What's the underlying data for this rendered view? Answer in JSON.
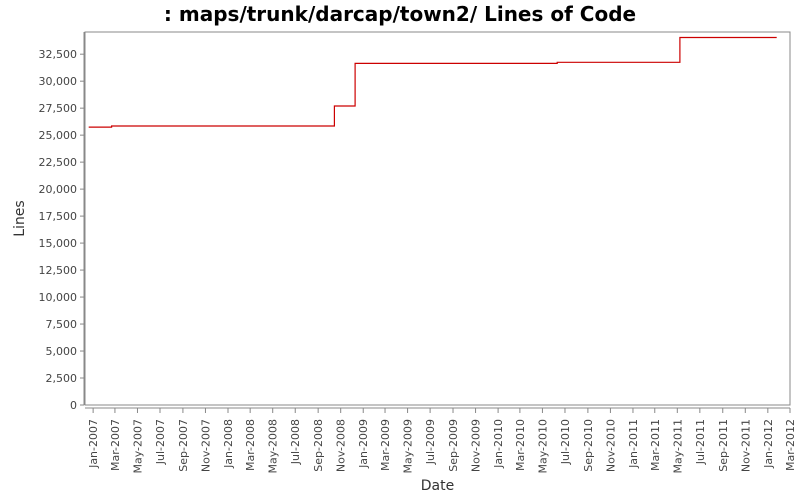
{
  "chart_data": {
    "type": "line",
    "title": ": maps/trunk/darcap/town2/ Lines of Code",
    "xlabel": "Date",
    "ylabel": "Lines",
    "ylim": [
      0,
      34000
    ],
    "xlim": [
      "2006-12-10",
      "2012-03-01"
    ],
    "grid": false,
    "step": true,
    "line_color": "#cc0000",
    "y_ticks": [
      0,
      2500,
      5000,
      7500,
      10000,
      12500,
      15000,
      17500,
      20000,
      22500,
      25000,
      27500,
      30000,
      32500
    ],
    "y_tick_labels": [
      "0",
      "2,500",
      "5,000",
      "7,500",
      "10,000",
      "12,500",
      "15,000",
      "17,500",
      "20,000",
      "22,500",
      "25,000",
      "27,500",
      "30,000",
      "32,500"
    ],
    "x_ticks": [
      "2007-01-01",
      "2007-03-01",
      "2007-05-01",
      "2007-07-01",
      "2007-09-01",
      "2007-11-01",
      "2008-01-01",
      "2008-03-01",
      "2008-05-01",
      "2008-07-01",
      "2008-09-01",
      "2008-11-01",
      "2009-01-01",
      "2009-03-01",
      "2009-05-01",
      "2009-07-01",
      "2009-09-01",
      "2009-11-01",
      "2010-01-01",
      "2010-03-01",
      "2010-05-01",
      "2010-07-01",
      "2010-09-01",
      "2010-11-01",
      "2011-01-01",
      "2011-03-01",
      "2011-05-01",
      "2011-07-01",
      "2011-09-01",
      "2011-11-01",
      "2012-01-01",
      "2012-03-01"
    ],
    "x_tick_labels": [
      "Jan-2007",
      "Mar-2007",
      "May-2007",
      "Jul-2007",
      "Sep-2007",
      "Nov-2007",
      "Jan-2008",
      "Mar-2008",
      "May-2008",
      "Jul-2008",
      "Sep-2008",
      "Nov-2008",
      "Jan-2009",
      "Mar-2009",
      "May-2009",
      "Jul-2009",
      "Sep-2009",
      "Nov-2009",
      "Jan-2010",
      "Mar-2010",
      "May-2010",
      "Jul-2010",
      "Sep-2010",
      "Nov-2010",
      "Jan-2011",
      "Mar-2011",
      "May-2011",
      "Jul-2011",
      "Sep-2011",
      "Nov-2011",
      "Jan-2012",
      "Mar-2012"
    ],
    "series": [
      {
        "x": [
          "2006-12-20",
          "2007-02-20",
          "2008-10-15",
          "2008-12-10",
          "2010-06-10",
          "2011-05-08",
          "2012-01-25"
        ],
        "y": [
          25750,
          25850,
          27700,
          31650,
          31750,
          34050,
          34050
        ]
      }
    ]
  }
}
